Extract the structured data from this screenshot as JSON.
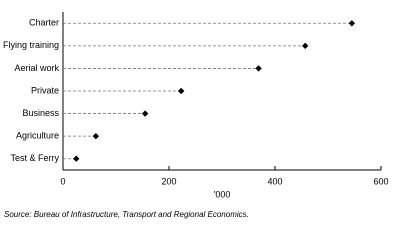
{
  "chart_data": {
    "type": "dot",
    "categories": [
      "Charter",
      "Flying training",
      "Aerial work",
      "Private",
      "Business",
      "Agriculture",
      "Test & Ferry"
    ],
    "values": [
      545,
      457,
      369,
      223,
      155,
      62,
      25
    ],
    "color": "#000000",
    "xlim": [
      0,
      600
    ],
    "xticks": [
      0,
      200,
      400,
      600
    ],
    "xlabel": "'000",
    "source": "Source: Bureau of Infrastructure, Transport and Regional Economics."
  }
}
